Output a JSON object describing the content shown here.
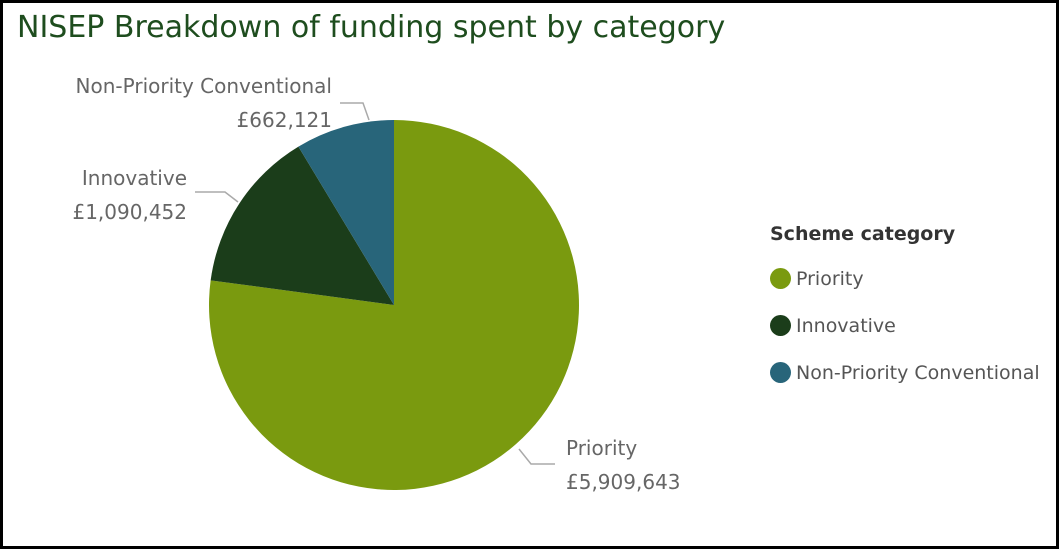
{
  "title": "NISEP Breakdown of funding spent by category",
  "legend_title": "Scheme category",
  "colors": {
    "Priority": "#7a9a0f",
    "Innovative": "#1b3d1a",
    "Non-Priority Conventional": "#28657a",
    "title": "#1e4d1e",
    "leader": "#aaaaaa",
    "label": "#666666"
  },
  "chart_data": {
    "type": "pie",
    "title": "NISEP Breakdown of funding spent by category",
    "legend_title": "Scheme category",
    "legend_position": "right",
    "slices": [
      {
        "label": "Priority",
        "value": 5909643,
        "value_label": "£5,909,643",
        "color": "#7a9a0f"
      },
      {
        "label": "Innovative",
        "value": 1090452,
        "value_label": "£1,090,452",
        "color": "#1b3d1a"
      },
      {
        "label": "Non-Priority Conventional",
        "value": 662121,
        "value_label": "£662,121",
        "color": "#28657a"
      }
    ]
  }
}
